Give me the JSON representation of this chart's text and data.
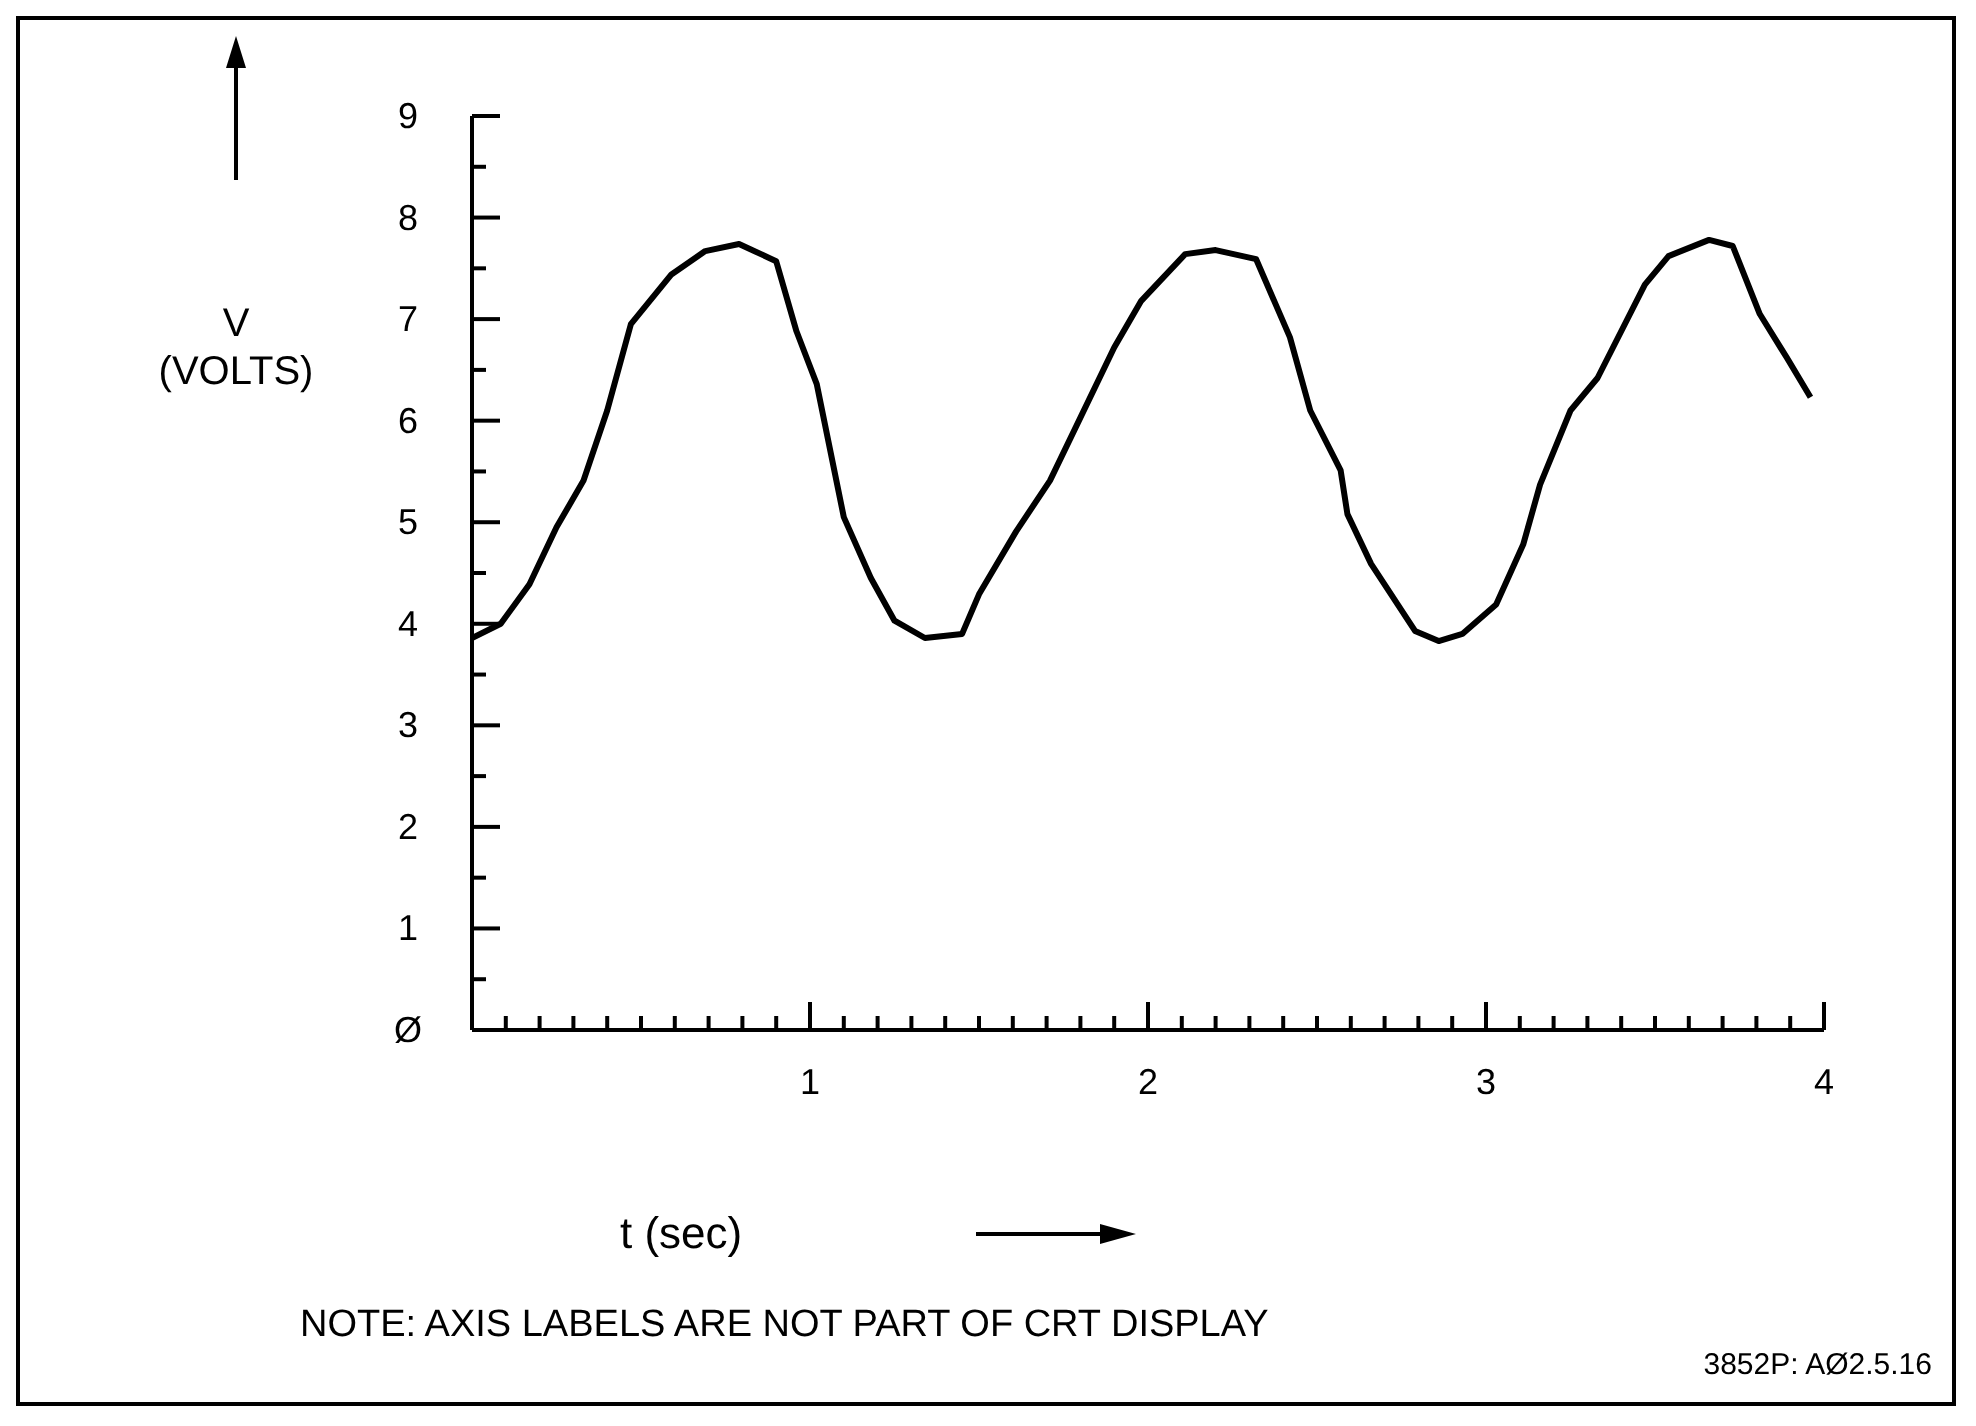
{
  "chart_data": {
    "type": "line",
    "xlabel": "t (sec)",
    "ylabel": "V (VOLTS)",
    "annotations": [
      "NOTE: AXIS LABELS ARE NOT PART OF CRT DISPLAY",
      "3852P: AØ2.5.16"
    ],
    "x": [
      0,
      0.085,
      0.17,
      0.25,
      0.33,
      0.4,
      0.47,
      0.59,
      0.69,
      0.79,
      0.9,
      0.96,
      1.02,
      1.1,
      1.18,
      1.25,
      1.34,
      1.45,
      1.5,
      1.61,
      1.71,
      1.8,
      1.9,
      1.98,
      2.11,
      2.2,
      2.32,
      2.42,
      2.48,
      2.57,
      2.59,
      2.66,
      2.79,
      2.86,
      2.93,
      3.03,
      3.11,
      3.16,
      3.25,
      3.33,
      3.47,
      3.54,
      3.66,
      3.73,
      3.81,
      3.89,
      3.96
    ],
    "series": [
      {
        "color": "#000000",
        "values": [
          3.86,
          4.0,
          4.39,
          4.95,
          5.41,
          6.1,
          6.95,
          7.44,
          7.67,
          7.74,
          7.57,
          6.88,
          6.36,
          5.05,
          4.45,
          4.03,
          3.86,
          3.9,
          4.29,
          4.91,
          5.41,
          6.03,
          6.72,
          7.18,
          7.64,
          7.68,
          7.59,
          6.82,
          6.1,
          5.51,
          5.08,
          4.59,
          3.93,
          3.83,
          3.9,
          4.19,
          4.78,
          5.37,
          6.1,
          6.42,
          7.34,
          7.62,
          7.78,
          7.72,
          7.05,
          6.62,
          6.23
        ]
      }
    ],
    "xlim": [
      0,
      4
    ],
    "xticks": [
      {
        "value": 0.1,
        "label": null
      },
      {
        "value": 0.2,
        "label": null
      },
      {
        "value": 0.3,
        "label": null
      },
      {
        "value": 0.4,
        "label": null
      },
      {
        "value": 0.5,
        "label": null
      },
      {
        "value": 0.6,
        "label": null
      },
      {
        "value": 0.7,
        "label": null
      },
      {
        "value": 0.8,
        "label": null
      },
      {
        "value": 0.9,
        "label": null
      },
      1,
      {
        "value": 1.1,
        "label": null
      },
      {
        "value": 1.2,
        "label": null
      },
      {
        "value": 1.3,
        "label": null
      },
      {
        "value": 1.4,
        "label": null
      },
      {
        "value": 1.5,
        "label": null
      },
      {
        "value": 1.6,
        "label": null
      },
      {
        "value": 1.7,
        "label": null
      },
      {
        "value": 1.8,
        "label": null
      },
      {
        "value": 1.9,
        "label": null
      },
      2,
      {
        "value": 2.1,
        "label": null
      },
      {
        "value": 2.2,
        "label": null
      },
      {
        "value": 2.3,
        "label": null
      },
      {
        "value": 2.4,
        "label": null
      },
      {
        "value": 2.5,
        "label": null
      },
      {
        "value": 2.6,
        "label": null
      },
      {
        "value": 2.7,
        "label": null
      },
      {
        "value": 2.8,
        "label": null
      },
      {
        "value": 2.9,
        "label": null
      },
      3,
      {
        "value": 3.1,
        "label": null
      },
      {
        "value": 3.2,
        "label": null
      },
      {
        "value": 3.3,
        "label": null
      },
      {
        "value": 3.4,
        "label": null
      },
      {
        "value": 3.5,
        "label": null
      },
      {
        "value": 3.6,
        "label": null
      },
      {
        "value": 3.7,
        "label": null
      },
      {
        "value": 3.8,
        "label": null
      },
      {
        "value": 3.9,
        "label": null
      },
      4
    ],
    "ylim": [
      0,
      9
    ],
    "yticks": [
      {
        "value": 0,
        "label": "Ø"
      },
      {
        "value": 0.5,
        "label": null
      },
      1,
      {
        "value": 1.5,
        "label": null
      },
      2,
      {
        "value": 2.5,
        "label": null
      },
      3,
      {
        "value": 3.5,
        "label": null
      },
      4,
      {
        "value": 4.5,
        "label": null
      },
      5,
      {
        "value": 5.5,
        "label": null
      },
      6,
      {
        "value": 6.5,
        "label": null
      },
      7,
      {
        "value": 7.5,
        "label": null
      },
      8,
      {
        "value": 8.5,
        "label": null
      },
      9
    ],
    "marker": "none",
    "line_style": "solid"
  }
}
